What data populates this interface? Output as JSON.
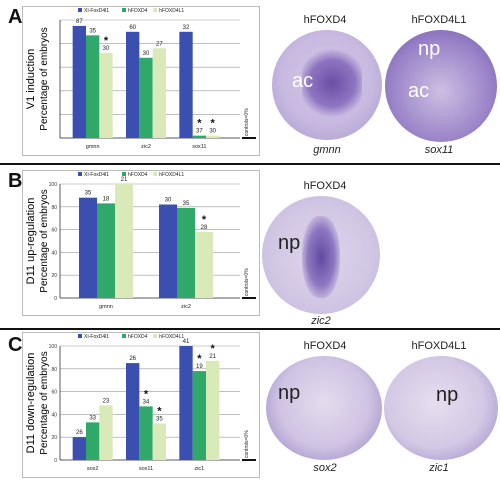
{
  "panels": [
    {
      "letter": "A",
      "ylabel_1": "V1 induction",
      "ylabel_2": "Percentage of embryos",
      "control_text": "controls=0%",
      "photo_titles": [
        "hFOXD4",
        "hFOXD4L1"
      ],
      "photo_region_labels": [
        "ac",
        "np",
        "ac"
      ],
      "photo_genes": [
        "gmnn",
        "sox11"
      ]
    },
    {
      "letter": "B",
      "ylabel_1": "D11 up-regulation",
      "ylabel_2": "Percentage of embryos",
      "control_text": "controls=0%",
      "photo_titles": [
        "hFOXD4"
      ],
      "photo_region_labels": [
        "np"
      ],
      "photo_genes": [
        "zic2"
      ]
    },
    {
      "letter": "C",
      "ylabel_1": "D11 down-regulation",
      "ylabel_2": "Percentage of embryos",
      "control_text": "controls=0%",
      "photo_titles": [
        "hFOXD4",
        "hFOXD4L1"
      ],
      "photo_region_labels": [
        "np",
        "np"
      ],
      "photo_genes": [
        "sox2",
        "zic1"
      ]
    }
  ],
  "chart_data": [
    {
      "type": "bar",
      "legend": [
        "XI-FoxD4l1",
        "hFOXD4",
        "hFOXD4L1"
      ],
      "colors": [
        "#3a4fb0",
        "#2fa86a",
        "#d9eab8"
      ],
      "categories": [
        "gmnn",
        "zic2",
        "sox11"
      ],
      "series": [
        {
          "name": "XI-FoxD4l1",
          "values": [
            95,
            90,
            90
          ]
        },
        {
          "name": "hFOXD4",
          "values": [
            87,
            68,
            2
          ]
        },
        {
          "name": "hFOXD4L1",
          "values": [
            72,
            76,
            2
          ]
        }
      ],
      "n_labels": [
        [
          "87",
          "35",
          "30"
        ],
        [
          "60",
          "30",
          "27"
        ],
        [
          "32",
          "37",
          "30"
        ]
      ],
      "stars": [
        [
          false,
          false,
          true
        ],
        [
          false,
          false,
          false
        ],
        [
          false,
          true,
          true
        ]
      ],
      "yticks": [
        "",
        "",
        "",
        "",
        "",
        ""
      ],
      "ylim": [
        0,
        100
      ]
    },
    {
      "type": "bar",
      "legend": [
        "XI-FoxD4l1",
        "hFOXD4",
        "hFOXD4L1"
      ],
      "colors": [
        "#3a4fb0",
        "#2fa86a",
        "#d9eab8"
      ],
      "categories": [
        "gmnn",
        "zic2"
      ],
      "series": [
        {
          "name": "XI-FoxD4l1",
          "values": [
            88,
            82
          ]
        },
        {
          "name": "hFOXD4",
          "values": [
            83,
            79
          ]
        },
        {
          "name": "hFOXD4L1",
          "values": [
            100,
            58
          ]
        }
      ],
      "n_labels": [
        [
          "35",
          "18",
          "21"
        ],
        [
          "30",
          "35",
          "28"
        ]
      ],
      "stars": [
        [
          false,
          false,
          false
        ],
        [
          false,
          false,
          true
        ]
      ],
      "yticks": [
        "0",
        "20",
        "40",
        "60",
        "80",
        "100"
      ],
      "ylim": [
        0,
        100
      ]
    },
    {
      "type": "bar",
      "legend": [
        "XI-FoxD4l1",
        "hFOXD4",
        "hFOXD4L1"
      ],
      "colors": [
        "#3a4fb0",
        "#2fa86a",
        "#d9eab8"
      ],
      "categories": [
        "sox2",
        "sox11",
        "zic1"
      ],
      "series": [
        {
          "name": "XI-FoxD4l1",
          "values": [
            20,
            85,
            100
          ]
        },
        {
          "name": "hFOXD4",
          "values": [
            33,
            47,
            78
          ]
        },
        {
          "name": "hFOXD4L1",
          "values": [
            48,
            32,
            87
          ]
        }
      ],
      "n_labels": [
        [
          "26",
          "33",
          "23"
        ],
        [
          "26",
          "34",
          "35"
        ],
        [
          "41",
          "19",
          "21"
        ]
      ],
      "stars": [
        [
          false,
          false,
          false
        ],
        [
          false,
          true,
          true
        ],
        [
          false,
          true,
          true
        ]
      ],
      "yticks": [
        "0",
        "20",
        "40",
        "60",
        "80",
        "100"
      ],
      "ylim": [
        0,
        100
      ]
    }
  ]
}
